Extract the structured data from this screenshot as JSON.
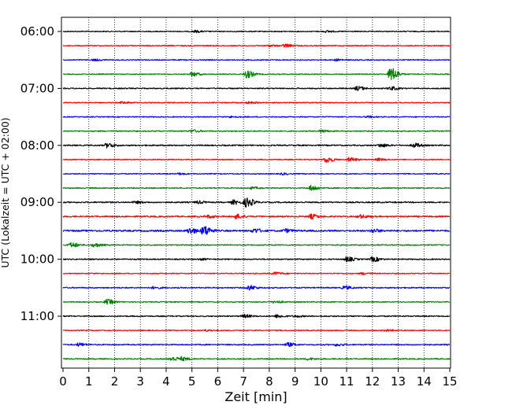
{
  "chart_data": {
    "type": "line",
    "xlabel": "Zeit  [min]",
    "ylabel": "UTC (Lokalzeit = UTC + 02:00)",
    "xlim": [
      0,
      15
    ],
    "x_ticks": [
      "0",
      "1",
      "2",
      "3",
      "4",
      "5",
      "6",
      "7",
      "8",
      "9",
      "10",
      "11",
      "12",
      "13",
      "14",
      "15"
    ],
    "y_tick_labels": [
      "06:00",
      "07:00",
      "08:00",
      "09:00",
      "10:00",
      "11:00"
    ],
    "grid": "vertical dotted",
    "trace_colors": [
      "#000000",
      "#ff0000",
      "#0000ff",
      "#008000"
    ],
    "traces": [
      {
        "start": "06:00",
        "color": "#000000",
        "noise": 0.6,
        "events": [
          {
            "t": 5.1,
            "amp": 1.2
          },
          {
            "t": 10.2,
            "amp": 1.0
          }
        ]
      },
      {
        "start": "06:15",
        "color": "#ff0000",
        "noise": 0.6,
        "events": [
          {
            "t": 8.6,
            "amp": 2.2
          },
          {
            "t": 8.0,
            "amp": 1.0
          }
        ]
      },
      {
        "start": "06:30",
        "color": "#0000ff",
        "noise": 0.6,
        "events": [
          {
            "t": 1.2,
            "amp": 1.0
          },
          {
            "t": 10.6,
            "amp": 1.0
          }
        ]
      },
      {
        "start": "06:45",
        "color": "#008000",
        "noise": 0.6,
        "events": [
          {
            "t": 5.0,
            "amp": 2.5
          },
          {
            "t": 7.1,
            "amp": 4.5
          },
          {
            "t": 12.7,
            "amp": 8.5
          }
        ]
      },
      {
        "start": "07:00",
        "color": "#000000",
        "noise": 0.7,
        "events": [
          {
            "t": 11.4,
            "amp": 2.5
          },
          {
            "t": 12.7,
            "amp": 2.0
          }
        ]
      },
      {
        "start": "07:15",
        "color": "#ff0000",
        "noise": 0.6,
        "events": [
          {
            "t": 2.3,
            "amp": 1.2
          },
          {
            "t": 7.2,
            "amp": 1.2
          }
        ]
      },
      {
        "start": "07:30",
        "color": "#0000ff",
        "noise": 0.6,
        "events": [
          {
            "t": 6.5,
            "amp": 1.0
          },
          {
            "t": 11.8,
            "amp": 1.0
          }
        ]
      },
      {
        "start": "07:45",
        "color": "#008000",
        "noise": 0.7,
        "events": [
          {
            "t": 5.0,
            "amp": 1.5
          },
          {
            "t": 10.0,
            "amp": 1.5
          }
        ]
      },
      {
        "start": "08:00",
        "color": "#000000",
        "noise": 0.8,
        "events": [
          {
            "t": 1.7,
            "amp": 2.8
          },
          {
            "t": 12.3,
            "amp": 2.0
          },
          {
            "t": 13.6,
            "amp": 2.5
          }
        ]
      },
      {
        "start": "08:15",
        "color": "#ff0000",
        "noise": 0.6,
        "events": [
          {
            "t": 10.2,
            "amp": 3.5
          },
          {
            "t": 11.1,
            "amp": 2.5
          },
          {
            "t": 12.2,
            "amp": 1.5
          }
        ]
      },
      {
        "start": "08:30",
        "color": "#0000ff",
        "noise": 0.6,
        "events": [
          {
            "t": 4.5,
            "amp": 1.0
          },
          {
            "t": 8.5,
            "amp": 1.0
          }
        ]
      },
      {
        "start": "08:45",
        "color": "#008000",
        "noise": 0.7,
        "events": [
          {
            "t": 9.6,
            "amp": 3.2
          },
          {
            "t": 7.3,
            "amp": 1.2
          }
        ]
      },
      {
        "start": "09:00",
        "color": "#000000",
        "noise": 0.8,
        "events": [
          {
            "t": 7.1,
            "amp": 5.5
          },
          {
            "t": 6.6,
            "amp": 2.5
          },
          {
            "t": 5.2,
            "amp": 1.5
          },
          {
            "t": 2.8,
            "amp": 1.2
          }
        ]
      },
      {
        "start": "09:15",
        "color": "#ff0000",
        "noise": 0.9,
        "events": [
          {
            "t": 6.7,
            "amp": 2.5
          },
          {
            "t": 9.6,
            "amp": 2.6
          },
          {
            "t": 11.5,
            "amp": 2.0
          },
          {
            "t": 5.6,
            "amp": 1.5
          }
        ]
      },
      {
        "start": "09:30",
        "color": "#0000ff",
        "noise": 1.0,
        "events": [
          {
            "t": 5.45,
            "amp": 6.0
          },
          {
            "t": 4.9,
            "amp": 3.5
          },
          {
            "t": 7.4,
            "amp": 2.4
          },
          {
            "t": 8.6,
            "amp": 2.0
          },
          {
            "t": 12.0,
            "amp": 2.0
          }
        ]
      },
      {
        "start": "09:45",
        "color": "#008000",
        "noise": 0.7,
        "events": [
          {
            "t": 0.3,
            "amp": 3.0
          },
          {
            "t": 1.2,
            "amp": 2.2
          }
        ]
      },
      {
        "start": "10:00",
        "color": "#000000",
        "noise": 0.7,
        "events": [
          {
            "t": 11.0,
            "amp": 2.8
          },
          {
            "t": 12.0,
            "amp": 2.8
          },
          {
            "t": 5.3,
            "amp": 1.0
          }
        ]
      },
      {
        "start": "10:15",
        "color": "#ff0000",
        "noise": 0.6,
        "events": [
          {
            "t": 8.2,
            "amp": 1.5
          },
          {
            "t": 11.6,
            "amp": 1.2
          }
        ]
      },
      {
        "start": "10:30",
        "color": "#0000ff",
        "noise": 0.7,
        "events": [
          {
            "t": 7.2,
            "amp": 3.0
          },
          {
            "t": 10.9,
            "amp": 2.0
          },
          {
            "t": 3.5,
            "amp": 1.2
          }
        ]
      },
      {
        "start": "10:45",
        "color": "#008000",
        "noise": 0.6,
        "events": [
          {
            "t": 1.7,
            "amp": 3.2
          },
          {
            "t": 8.2,
            "amp": 1.5
          }
        ]
      },
      {
        "start": "11:00",
        "color": "#000000",
        "noise": 0.7,
        "events": [
          {
            "t": 7.0,
            "amp": 1.8
          },
          {
            "t": 8.3,
            "amp": 1.8
          },
          {
            "t": 9.0,
            "amp": 1.0
          }
        ]
      },
      {
        "start": "11:15",
        "color": "#ff0000",
        "noise": 0.6,
        "events": [
          {
            "t": 5.5,
            "amp": 1.0
          },
          {
            "t": 12.5,
            "amp": 1.0
          }
        ]
      },
      {
        "start": "11:30",
        "color": "#0000ff",
        "noise": 0.7,
        "events": [
          {
            "t": 0.6,
            "amp": 1.8
          },
          {
            "t": 8.7,
            "amp": 2.2
          },
          {
            "t": 10.6,
            "amp": 1.5
          }
        ]
      },
      {
        "start": "11:45",
        "color": "#008000",
        "noise": 0.7,
        "events": [
          {
            "t": 4.2,
            "amp": 2.5
          },
          {
            "t": 4.6,
            "amp": 2.0
          },
          {
            "t": 9.5,
            "amp": 1.2
          }
        ]
      }
    ]
  }
}
